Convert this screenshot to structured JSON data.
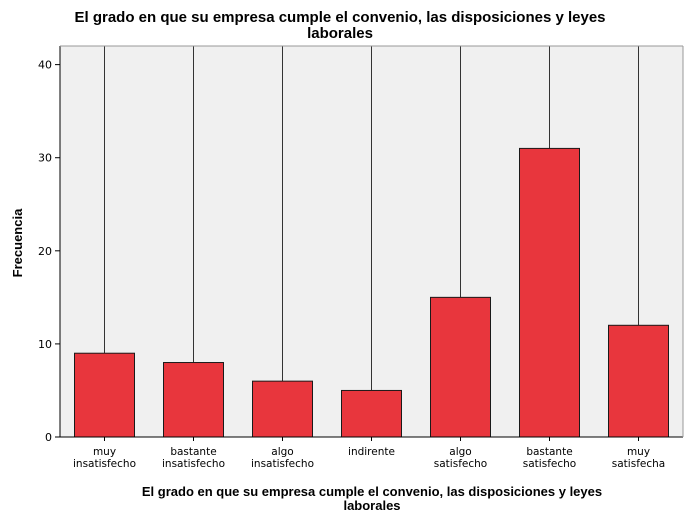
{
  "chart_data": {
    "type": "bar",
    "title_lines": [
      "El grado en que su empresa cumple el convenio, las disposiciones y leyes",
      "laborales"
    ],
    "xlabel_lines": [
      "El grado en que su empresa cumple el convenio, las disposiciones y leyes",
      "laborales"
    ],
    "ylabel": "Frecuencia",
    "categories": [
      [
        "muy",
        "insatisfecho"
      ],
      [
        "bastante",
        "insatisfecho"
      ],
      [
        "algo",
        "insatisfecho"
      ],
      [
        "indirente"
      ],
      [
        "algo",
        "satisfecho"
      ],
      [
        "bastante",
        "satisfecho"
      ],
      [
        "muy",
        "satisfecha"
      ]
    ],
    "values": [
      9,
      8,
      6,
      5,
      15,
      31,
      12
    ],
    "ylim": [
      0,
      42
    ],
    "yticks": [
      0,
      10,
      20,
      30,
      40
    ],
    "grid": false,
    "colors": {
      "bar_fill": "#e8363d",
      "bar_stroke": "#1a1a1a",
      "plot_bg": "#f0f0f0",
      "axis": "#000000",
      "spike": "#333333"
    }
  }
}
